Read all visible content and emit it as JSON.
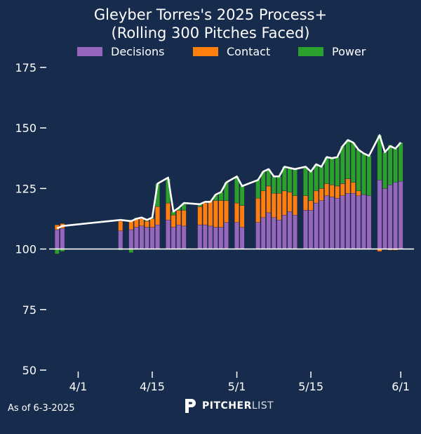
{
  "header": {
    "title_line1": "Gleyber Torres's 2025 Process+",
    "title_line2": "(Rolling 300 Pitches Faced)"
  },
  "legend": [
    {
      "label": "Decisions",
      "color": "#9467bd"
    },
    {
      "label": "Contact",
      "color": "#ff7f0e"
    },
    {
      "label": "Power",
      "color": "#2ca02c"
    }
  ],
  "footer": {
    "as_of": "As of 6-3-2025",
    "brand_bold": "PITCHER",
    "brand_light": "LIST"
  },
  "chart_data": {
    "type": "bar",
    "stacked": true,
    "baseline": 100,
    "ylim": [
      50,
      175
    ],
    "yticks": [
      50,
      75,
      100,
      125,
      150,
      175
    ],
    "xticks": [
      {
        "label": "4/1",
        "day": 4
      },
      {
        "label": "4/15",
        "day": 18
      },
      {
        "label": "5/1",
        "day": 34
      },
      {
        "label": "5/15",
        "day": 48
      },
      {
        "label": "6/1",
        "day": 65
      }
    ],
    "x_range_days": [
      -1.5,
      67.5
    ],
    "bar_width_days": 0.85,
    "series": [
      {
        "name": "Decisions",
        "color": "#9467bd"
      },
      {
        "name": "Contact",
        "color": "#ff7f0e"
      },
      {
        "name": "Power",
        "color": "#2ca02c"
      }
    ],
    "line_color": "#ffffff",
    "points": [
      {
        "day": 0,
        "decisions": 108,
        "contact": 2,
        "power": -2,
        "total": 108.5
      },
      {
        "day": 1,
        "decisions": 108.5,
        "contact": 2,
        "power": -1,
        "total": 109.5
      },
      {
        "day": 12,
        "decisions": 107.5,
        "contact": 4,
        "power": -0.5,
        "total": 112
      },
      {
        "day": 14,
        "decisions": 108,
        "contact": 4,
        "power": -1.5,
        "total": 111.5
      },
      {
        "day": 15,
        "decisions": 109,
        "contact": 3.5,
        "power": 0.5,
        "total": 112.5
      },
      {
        "day": 16,
        "decisions": 109.5,
        "contact": 3,
        "power": 0.5,
        "total": 113
      },
      {
        "day": 17,
        "decisions": 109,
        "contact": 2.5,
        "power": 0.5,
        "total": 112
      },
      {
        "day": 18,
        "decisions": 109,
        "contact": 3.5,
        "power": 0.5,
        "total": 113
      },
      {
        "day": 19,
        "decisions": 110,
        "contact": 7.5,
        "power": 9.5,
        "total": 127
      },
      {
        "day": 21,
        "decisions": 112,
        "contact": 7,
        "power": 10,
        "total": 129.5
      },
      {
        "day": 22,
        "decisions": 109,
        "contact": 5,
        "power": 1.5,
        "total": 115.5
      },
      {
        "day": 23,
        "decisions": 110,
        "contact": 6,
        "power": 1,
        "total": 117
      },
      {
        "day": 24,
        "decisions": 109.5,
        "contact": 6.5,
        "power": 2.5,
        "total": 119
      },
      {
        "day": 27,
        "decisions": 110,
        "contact": 7.5,
        "power": 1,
        "total": 118.5
      },
      {
        "day": 28,
        "decisions": 110,
        "contact": 9,
        "power": 0.5,
        "total": 119.5
      },
      {
        "day": 29,
        "decisions": 109.5,
        "contact": 10.5,
        "power": 0,
        "total": 119.5
      },
      {
        "day": 30,
        "decisions": 109,
        "contact": 11,
        "power": 2.5,
        "total": 122.5
      },
      {
        "day": 31,
        "decisions": 109,
        "contact": 11,
        "power": 3.5,
        "total": 123.5
      },
      {
        "day": 32,
        "decisions": 111,
        "contact": 9,
        "power": 7.5,
        "total": 127.5
      },
      {
        "day": 34,
        "decisions": 111,
        "contact": 8,
        "power": 11,
        "total": 130
      },
      {
        "day": 35,
        "decisions": 109,
        "contact": 9,
        "power": 8,
        "total": 126
      },
      {
        "day": 38,
        "decisions": 111,
        "contact": 10,
        "power": 7.5,
        "total": 128.5
      },
      {
        "day": 39,
        "decisions": 113,
        "contact": 11,
        "power": 8,
        "total": 132
      },
      {
        "day": 40,
        "decisions": 115,
        "contact": 11,
        "power": 7,
        "total": 133
      },
      {
        "day": 41,
        "decisions": 113,
        "contact": 10,
        "power": 7,
        "total": 130
      },
      {
        "day": 42,
        "decisions": 112,
        "contact": 11,
        "power": 7,
        "total": 130
      },
      {
        "day": 43,
        "decisions": 114,
        "contact": 10,
        "power": 10,
        "total": 134
      },
      {
        "day": 44,
        "decisions": 115.5,
        "contact": 8,
        "power": 10,
        "total": 133.5
      },
      {
        "day": 45,
        "decisions": 114,
        "contact": 8,
        "power": 11,
        "total": 133
      },
      {
        "day": 47,
        "decisions": 116,
        "contact": 6,
        "power": 12,
        "total": 134
      },
      {
        "day": 48,
        "decisions": 116,
        "contact": 4,
        "power": 12,
        "total": 132
      },
      {
        "day": 49,
        "decisions": 119,
        "contact": 5,
        "power": 11,
        "total": 135
      },
      {
        "day": 50,
        "decisions": 120,
        "contact": 5,
        "power": 9,
        "total": 134
      },
      {
        "day": 51,
        "decisions": 122,
        "contact": 5,
        "power": 11,
        "total": 138
      },
      {
        "day": 52,
        "decisions": 121.5,
        "contact": 5,
        "power": 11,
        "total": 137.5
      },
      {
        "day": 53,
        "decisions": 121,
        "contact": 5,
        "power": 12,
        "total": 138
      },
      {
        "day": 54,
        "decisions": 122,
        "contact": 5,
        "power": 15.5,
        "total": 142.5
      },
      {
        "day": 55,
        "decisions": 123,
        "contact": 6,
        "power": 16,
        "total": 145
      },
      {
        "day": 56,
        "decisions": 123,
        "contact": 4.5,
        "power": 16.5,
        "total": 144
      },
      {
        "day": 57,
        "decisions": 122,
        "contact": 2,
        "power": 17,
        "total": 141
      },
      {
        "day": 58,
        "decisions": 122.5,
        "contact": 0,
        "power": 17,
        "total": 139.5
      },
      {
        "day": 59,
        "decisions": 122,
        "contact": 0,
        "power": 16.5,
        "total": 138.5
      },
      {
        "day": 61,
        "decisions": 128.5,
        "contact": -1,
        "power": 18.5,
        "total": 147
      },
      {
        "day": 62,
        "decisions": 125,
        "contact": 0,
        "power": 15,
        "total": 140
      },
      {
        "day": 63,
        "decisions": 126.5,
        "contact": -0.5,
        "power": 16.5,
        "total": 142.5
      },
      {
        "day": 64,
        "decisions": 127.5,
        "contact": -0.5,
        "power": 14,
        "total": 141.5
      },
      {
        "day": 65,
        "decisions": 128,
        "contact": 0,
        "power": 16,
        "total": 144
      }
    ]
  }
}
